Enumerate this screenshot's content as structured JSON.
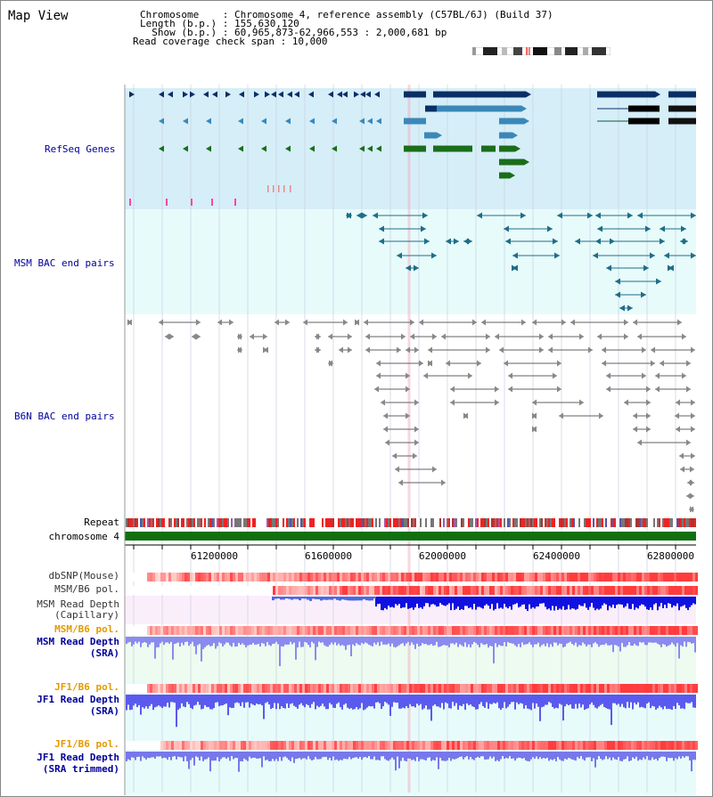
{
  "page": {
    "title": "Map View"
  },
  "header": {
    "line1": "Chromosome    : Chromosome 4, reference assembly (C57BL/6J) (Build 37)",
    "line2": "Length (b.p.) : 155,630,120",
    "line3": "  Show (b.p.) : 60,965,873-62,966,553 : 2,000,681 bp",
    "line4": "Read coverage check span : 10,000"
  },
  "tracks": {
    "refseq": "RefSeq Genes",
    "msm_bac": "MSM BAC end pairs",
    "b6n_bac": "B6N BAC end pairs",
    "repeat": "Repeat",
    "chromosome": "chromosome 4",
    "dbsnp": "dbSNP(Mouse)",
    "msm_pol": "MSM/B6 pol.",
    "msm_cap_1": "MSM Read Depth",
    "msm_cap_2": "(Capillary)",
    "msm_pol2": "MSM/B6 pol.",
    "msm_sra_1": "MSM Read Depth",
    "msm_sra_2": "(SRA)",
    "jf1_pol": "JF1/B6 pol.",
    "jf1_sra_1": "JF1 Read Depth",
    "jf1_sra_2": "(SRA)",
    "jf1_pol2": "JF1/B6 pol.",
    "jf1_trim_1": "JF1 Read Depth",
    "jf1_trim_2": "(SRA trimmed)"
  },
  "axis": {
    "ticks": [
      "61200000",
      "61600000",
      "62000000",
      "62400000",
      "62800000"
    ]
  },
  "colors": {
    "refseq_bg": "#d6eef8",
    "msm_bac_bg": "#e8fbfb",
    "navy": "#0a2f66",
    "steel": "#3a88b8",
    "green": "#1a6e1a",
    "teal": "#1e6e88",
    "gray_bac": "#606060",
    "chromosome": "#107010",
    "label_orange": "#e39a00",
    "label_navy": "#000099",
    "depth_blue": "#2020e0"
  }
}
